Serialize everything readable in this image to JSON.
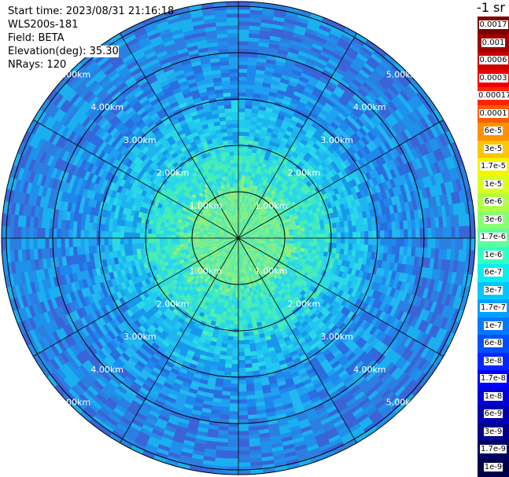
{
  "info": {
    "start_time": "Start time: 2023/08/31 21:16:18",
    "instrument": "WLS200s-181",
    "field": "Field: BETA",
    "elevation": "Elevation(deg): 35.30",
    "nrays": "NRays: 120"
  },
  "units_label": "-1 sr",
  "chart_data": {
    "type": "heatmap",
    "projection": "polar",
    "ring_labels": [
      "1.00km",
      "2.00km",
      "3.00km",
      "4.00km",
      "5.00km"
    ],
    "spokes_deg": [
      0,
      30,
      60,
      90,
      120,
      150,
      180,
      210,
      240,
      270,
      300,
      330
    ],
    "colorbar": [
      {
        "label": "0.0017",
        "color": "#7d0000"
      },
      {
        "label": "0.001",
        "color": "#a30000"
      },
      {
        "label": "0.0006",
        "color": "#c80000"
      },
      {
        "label": "0.0003",
        "color": "#ef0000"
      },
      {
        "label": "0.00017",
        "color": "#ff2400"
      },
      {
        "label": "0.0001",
        "color": "#ff5c00"
      },
      {
        "label": "6e-5",
        "color": "#ff9100"
      },
      {
        "label": "3e-5",
        "color": "#ffc600"
      },
      {
        "label": "1.7e-5",
        "color": "#f5f500"
      },
      {
        "label": "1e-5",
        "color": "#d8ff1e"
      },
      {
        "label": "6e-6",
        "color": "#b0ff47"
      },
      {
        "label": "3e-6",
        "color": "#86ff70"
      },
      {
        "label": "1.7e-6",
        "color": "#5cff9a"
      },
      {
        "label": "1e-6",
        "color": "#33ffc3"
      },
      {
        "label": "6e-7",
        "color": "#0aeeee"
      },
      {
        "label": "3e-7",
        "color": "#00c8ff"
      },
      {
        "label": "1.7e-7",
        "color": "#00a0ff"
      },
      {
        "label": "1e-7",
        "color": "#0078ff"
      },
      {
        "label": "6e-8",
        "color": "#0050ff"
      },
      {
        "label": "3e-8",
        "color": "#0028ff"
      },
      {
        "label": "1.7e-8",
        "color": "#0000ff"
      },
      {
        "label": "1e-8",
        "color": "#0000d8"
      },
      {
        "label": "6e-9",
        "color": "#0000b0"
      },
      {
        "label": "3e-9",
        "color": "#000088"
      },
      {
        "label": "1.7e-9",
        "color": "#000062"
      },
      {
        "label": "1e-9",
        "color": "#00004a"
      }
    ],
    "field_colors": {
      "center": "#8ef07c",
      "inner": "#3ee9c5",
      "mid": "#21c8f0",
      "outer": "#1fa0f0",
      "edge": "#2c7fe0"
    }
  }
}
